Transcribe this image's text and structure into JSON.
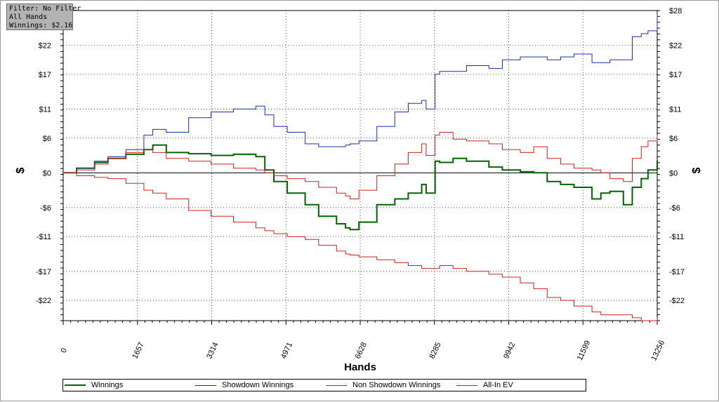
{
  "info_box": {
    "filter": "Filter: No Filter",
    "hands": "All Hands",
    "winnings": "Winnings: $2.16"
  },
  "chart_data": {
    "type": "line",
    "xlabel": "Hands",
    "ylabel": "$",
    "xlim": [
      0,
      13256
    ],
    "ylim": [
      -25.5,
      28
    ],
    "x_ticks": [
      0,
      1657,
      3314,
      4971,
      6628,
      8285,
      9942,
      11599,
      13256
    ],
    "y_ticks": [
      28,
      22,
      17,
      11,
      6,
      0,
      -6,
      -11,
      -17,
      -22
    ],
    "y_tick_labels": [
      "$28",
      "$22",
      "$17",
      "$11",
      "$6",
      "$0",
      "-$6",
      "-$11",
      "-$17",
      "-$22"
    ],
    "grid": true,
    "legend_position": "bottom",
    "series": [
      {
        "name": "Winnings",
        "color": "#006400",
        "x": [
          0,
          300,
          700,
          1000,
          1400,
          1800,
          2000,
          2300,
          2800,
          3300,
          3800,
          4300,
          4500,
          4700,
          5000,
          5400,
          5700,
          6100,
          6300,
          6400,
          6600,
          7000,
          7400,
          7700,
          8000,
          8100,
          8300,
          8400,
          8700,
          9000,
          9500,
          9800,
          10200,
          10500,
          10800,
          11100,
          11400,
          11800,
          12000,
          12200,
          12500,
          12700,
          12900,
          13050,
          13256
        ],
        "y": [
          0,
          0.8,
          1.8,
          2.5,
          3.2,
          4.0,
          4.8,
          3.5,
          3.3,
          3.0,
          3.2,
          2.8,
          0.5,
          -1.5,
          -3.5,
          -5.5,
          -7.5,
          -8.8,
          -9.5,
          -9.8,
          -8.5,
          -5.5,
          -4.5,
          -3.5,
          -2.0,
          -3.5,
          2.0,
          1.8,
          2.5,
          2.0,
          1.0,
          0.5,
          0.2,
          0,
          -1.5,
          -2.0,
          -2.5,
          -4.5,
          -3.5,
          -3.2,
          -5.5,
          -2.5,
          -1.0,
          0.5,
          2.16
        ]
      },
      {
        "name": "Showdown Winnings",
        "color": "#1f2fa8",
        "x": [
          0,
          300,
          700,
          1000,
          1400,
          1800,
          2000,
          2300,
          2800,
          3300,
          3800,
          4300,
          4500,
          4700,
          5000,
          5400,
          5700,
          6100,
          6300,
          6400,
          6600,
          7000,
          7400,
          7700,
          8000,
          8100,
          8300,
          8400,
          8700,
          9000,
          9500,
          9800,
          10200,
          10500,
          10800,
          11100,
          11400,
          11800,
          12000,
          12200,
          12500,
          12700,
          12900,
          13050,
          13256
        ],
        "y": [
          0,
          0.8,
          2.0,
          2.8,
          4.0,
          6.5,
          7.5,
          7.0,
          9.5,
          10.5,
          11.0,
          11.5,
          10.0,
          8.0,
          7.0,
          5.0,
          4.5,
          4.5,
          4.8,
          5.0,
          5.5,
          8.0,
          10.5,
          12.0,
          12.5,
          11.0,
          17.0,
          17.5,
          17.5,
          18.5,
          18.0,
          19.5,
          20.0,
          20.0,
          19.5,
          20.0,
          20.5,
          19.0,
          19.0,
          19.5,
          19.5,
          23.5,
          24.0,
          24.5,
          27.5
        ]
      },
      {
        "name": "Non Showdown Winnings",
        "color": "#cc2222",
        "x": [
          0,
          300,
          700,
          1000,
          1400,
          1800,
          2000,
          2300,
          2800,
          3300,
          3800,
          4300,
          4500,
          4700,
          5000,
          5400,
          5700,
          6100,
          6300,
          6400,
          6600,
          7000,
          7400,
          7700,
          8000,
          8100,
          8300,
          8400,
          8700,
          9000,
          9500,
          9800,
          10200,
          10500,
          10800,
          11100,
          11400,
          11800,
          12000,
          12200,
          12500,
          12700,
          12900,
          13050,
          13256
        ],
        "y": [
          0,
          0.5,
          1.5,
          2.5,
          3.5,
          4.0,
          3.5,
          2.5,
          2.0,
          1.5,
          0.8,
          0.5,
          0,
          -0.5,
          -1.0,
          -1.5,
          -2.5,
          -3.5,
          -4.0,
          -4.5,
          -3.0,
          -0.5,
          1.5,
          3.5,
          5.0,
          3.0,
          6.5,
          7.0,
          5.8,
          5.5,
          5.0,
          4.0,
          3.5,
          4.5,
          2.5,
          1.5,
          0.8,
          0.5,
          0,
          -1.0,
          -1.5,
          2.5,
          4.5,
          5.5,
          6.5
        ]
      },
      {
        "name": "All-In EV",
        "color": "#cc2222",
        "x": [
          0,
          300,
          700,
          1000,
          1400,
          1800,
          2000,
          2300,
          2800,
          3300,
          3800,
          4300,
          4500,
          4700,
          5000,
          5400,
          5700,
          6100,
          6300,
          6400,
          6600,
          7000,
          7400,
          7700,
          8000,
          8100,
          8300,
          8400,
          8700,
          9000,
          9500,
          9800,
          10200,
          10500,
          10800,
          11100,
          11400,
          11800,
          12000,
          12200,
          12500,
          12700,
          12900,
          13050,
          13256
        ],
        "y": [
          0,
          -0.5,
          -0.8,
          -1.0,
          -1.8,
          -3.0,
          -3.5,
          -4.5,
          -6.5,
          -7.5,
          -8.5,
          -9.5,
          -10.0,
          -10.5,
          -11.0,
          -11.5,
          -12.5,
          -13.5,
          -14.0,
          -14.2,
          -14.5,
          -15.0,
          -15.5,
          -16.0,
          -16.5,
          -16.5,
          -16.5,
          -16.0,
          -16.5,
          -17.0,
          -17.5,
          -18.0,
          -19.0,
          -20.0,
          -21.5,
          -22.0,
          -23.0,
          -24.0,
          -24.5,
          -24.5,
          -24.5,
          -25.0,
          -25.5,
          -25.5,
          -25.0
        ]
      }
    ]
  }
}
